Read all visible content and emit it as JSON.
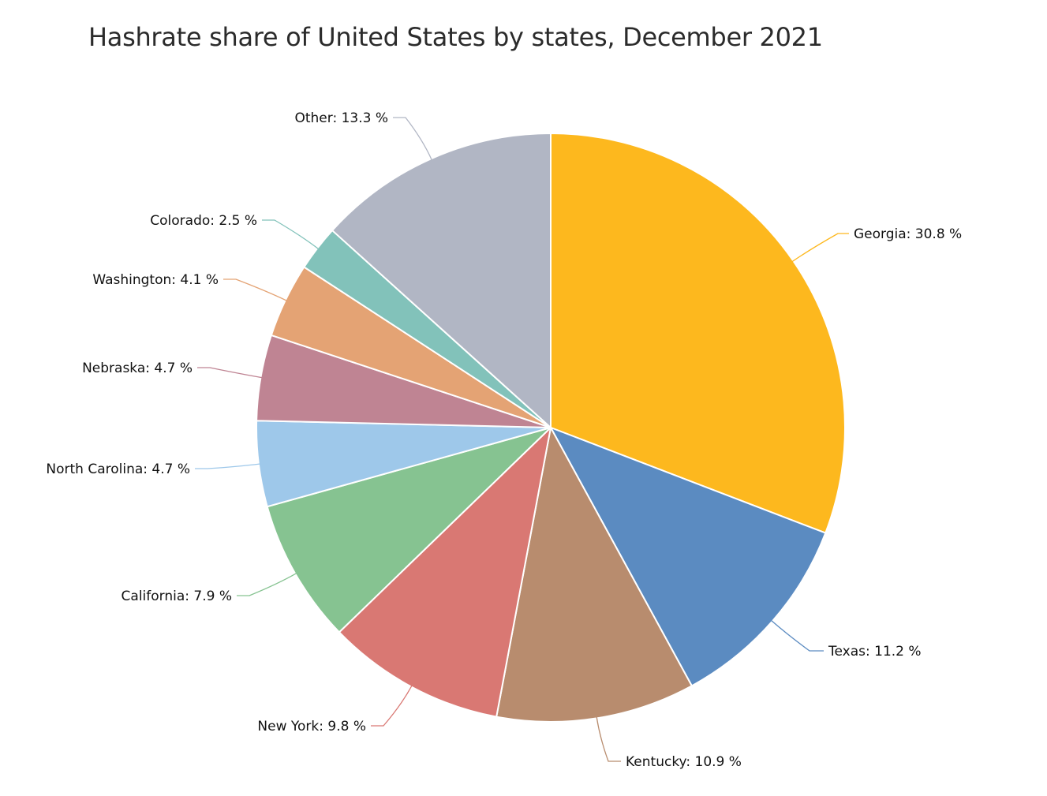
{
  "chart_data": {
    "type": "pie",
    "title": "Hashrate share of United States by states, December 2021",
    "unit": "%",
    "slices": [
      {
        "label": "Georgia",
        "value": 30.8,
        "display": "Georgia: 30.8 %",
        "color": "#FDB81E"
      },
      {
        "label": "Texas",
        "value": 11.2,
        "display": "Texas: 11.2 %",
        "color": "#5B8BC1"
      },
      {
        "label": "Kentucky",
        "value": 10.9,
        "display": "Kentucky: 10.9 %",
        "color": "#B88C6E"
      },
      {
        "label": "New York",
        "value": 9.8,
        "display": "New York: 9.8 %",
        "color": "#D97873"
      },
      {
        "label": "California",
        "value": 7.9,
        "display": "California: 7.9 %",
        "color": "#86C391"
      },
      {
        "label": "North Carolina",
        "value": 4.7,
        "display": "North Carolina: 4.7 %",
        "color": "#9EC8EA"
      },
      {
        "label": "Nebraska",
        "value": 4.7,
        "display": "Nebraska: 4.7 %",
        "color": "#BF8493"
      },
      {
        "label": "Washington",
        "value": 4.1,
        "display": "Washington: 4.1 %",
        "color": "#E4A374"
      },
      {
        "label": "Colorado",
        "value": 2.5,
        "display": "Colorado: 2.5 %",
        "color": "#82C2BA"
      },
      {
        "label": "Other",
        "value": 13.3,
        "display": "Other: 13.3 %",
        "color": "#B1B6C4"
      }
    ]
  }
}
